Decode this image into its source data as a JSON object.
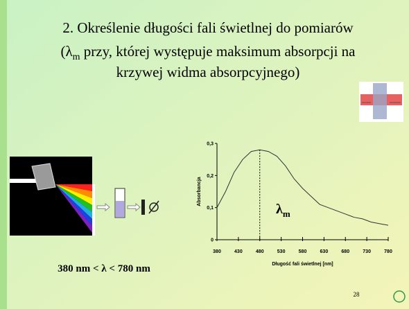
{
  "slide": {
    "title": [
      "2. Określenie długości fali świetlnej do pomiarów",
      "(λ",
      "m",
      " przy, której występuje maksimum absorpcji na",
      "krzywej widma absorpcyjnego)"
    ],
    "range_text": "380 nm < λ < 780 nm",
    "page_number": "28"
  },
  "chart_data": {
    "type": "line",
    "x_label": "Długość fali świetlnej [nm]",
    "y_label": "Absorbancja",
    "annotation": {
      "symbol": "λ",
      "subscript": "m"
    },
    "x": [
      380,
      400,
      420,
      440,
      460,
      480,
      500,
      520,
      540,
      560,
      580,
      600,
      620,
      640,
      660,
      680,
      700,
      720,
      740,
      760,
      780
    ],
    "values": [
      0.1,
      0.15,
      0.21,
      0.25,
      0.275,
      0.28,
      0.275,
      0.26,
      0.23,
      0.19,
      0.16,
      0.135,
      0.11,
      0.1,
      0.09,
      0.08,
      0.07,
      0.065,
      0.055,
      0.05,
      0.045
    ],
    "color": "#333333",
    "xlim": [
      380,
      780
    ],
    "xticks": [
      380,
      430,
      480,
      530,
      580,
      630,
      680,
      730,
      780
    ],
    "ylim": [
      0,
      0.3
    ],
    "yticks": [
      0,
      {
        "value": 0.1,
        "label": "0,1"
      },
      {
        "value": 0.2,
        "label": "0,2"
      },
      {
        "value": 0.3,
        "label": "0,3"
      }
    ]
  }
}
